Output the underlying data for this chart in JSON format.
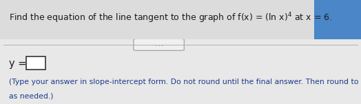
{
  "title_text": "Find the equation of the line tangent to the graph of f(x) = (ln x)",
  "title_exp": "4",
  "title_suffix": " at x = 6.",
  "answer_label": "y =",
  "instruction_line1": "(Type your answer in slope-intercept form. Do not round until the final answer. Then round to two decimal places",
  "instruction_line2": "as needed.)",
  "bg_color": "#e8e8e8",
  "bg_color_upper": "#dcdcdc",
  "blue_corner": "#4a86c8",
  "divider_color": "#b0b0b0",
  "text_color": "#1a1a1a",
  "instr_color": "#1a3a8a",
  "box_color": "#ffffff",
  "box_border": "#333333",
  "ellipsis_bg": "#f0f0f0",
  "ellipsis_border": "#999999",
  "ellipsis_text": ". . .",
  "title_fontsize": 9.0,
  "answer_fontsize": 10.5,
  "instr_fontsize": 7.8
}
